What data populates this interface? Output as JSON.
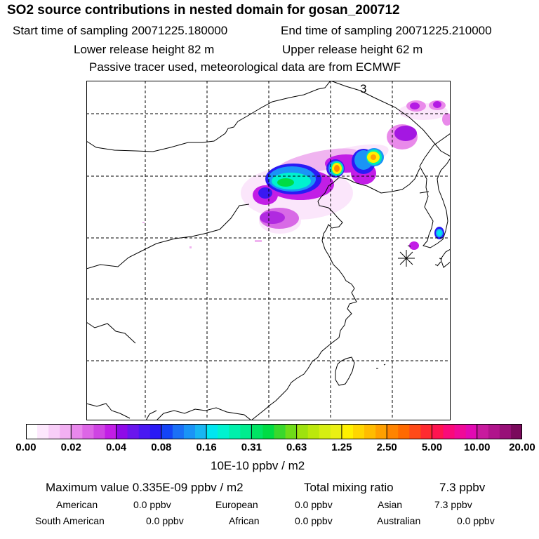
{
  "header": {
    "title": "SO2 source contributions in nested domain for gosan_200712",
    "start_time": "Start time of sampling 20071225.180000",
    "end_time": "End time of sampling 20071225.210000",
    "lower_height": "Lower release height   82 m",
    "upper_height": "Upper release height   62 m",
    "tracer_note": "Passive tracer used, meteorological data are from ECMWF"
  },
  "map": {
    "panel_label": "3",
    "receptor_icon": "asterisk-receptor-icon"
  },
  "colorbar": {
    "ticks": [
      "0.00",
      "0.02",
      "0.04",
      "0.08",
      "0.16",
      "0.31",
      "0.63",
      "1.25",
      "2.50",
      "5.00",
      "10.00",
      "20.00"
    ],
    "units": "10E-10 ppbv / m2",
    "colors": [
      "#ffffff",
      "#fde8fd",
      "#f8cef8",
      "#f2b0f2",
      "#e988ec",
      "#dd66e6",
      "#cf44e3",
      "#c21ee6",
      "#8f0ae8",
      "#6a16ed",
      "#4a18f2",
      "#2a1af5",
      "#1444f7",
      "#1a70f6",
      "#1a94f6",
      "#18b6f2",
      "#00e6f0",
      "#00f2cf",
      "#00f0ac",
      "#00ec8e",
      "#00e464",
      "#00dc44",
      "#3ad82c",
      "#6fdc18",
      "#9ee20e",
      "#bce80c",
      "#d6ee12",
      "#eaf014",
      "#fff000",
      "#ffd600",
      "#ffbc00",
      "#ffa000",
      "#ff8400",
      "#ff6a00",
      "#ff4a18",
      "#ff2a30",
      "#ff1450",
      "#fa0a7a",
      "#f00a98",
      "#e20ab2",
      "#c81a9e",
      "#b0148c",
      "#981078",
      "#7a0a5c"
    ]
  },
  "footer": {
    "max_label": "Maximum value  0.335E-09 ppbv / m2",
    "total_label": "Total mixing ratio",
    "total_value": "7.3 ppbv",
    "rows": [
      [
        {
          "name": "American",
          "value": "0.0 ppbv"
        },
        {
          "name": "European",
          "value": "0.0 ppbv"
        },
        {
          "name": "Asian",
          "value": "7.3 ppbv"
        }
      ],
      [
        {
          "name": "South American",
          "value": "0.0 ppbv"
        },
        {
          "name": "African",
          "value": "0.0 ppbv"
        },
        {
          "name": "Australian",
          "value": "0.0 ppbv"
        }
      ]
    ]
  }
}
